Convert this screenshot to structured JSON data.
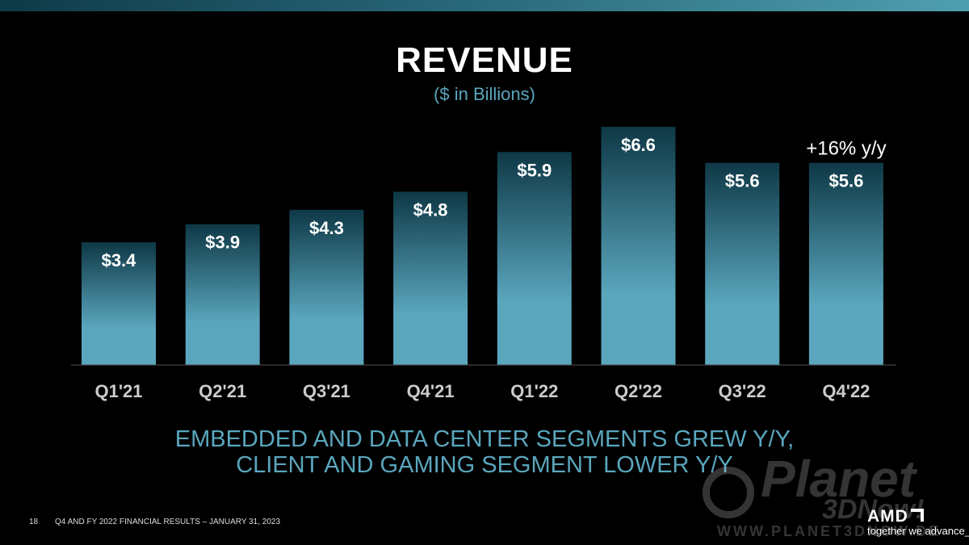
{
  "slide": {
    "title": "REVENUE",
    "subtitle": "($ in Billions)",
    "message_line1": "EMBEDDED AND DATA CENTER SEGMENTS GREW Y/Y,",
    "message_line2": "CLIENT AND GAMING SEGMENT LOWER Y/Y",
    "page_number": "18",
    "footer": "Q4 AND FY 2022 FINANCIAL RESULTS – JANUARY 31, 2023"
  },
  "brand": {
    "logo": "AMD",
    "tagline": "together we advance_",
    "accent_color": "#5aa6bd"
  },
  "watermark": {
    "word": "Planet",
    "word2": "3DNow!",
    "url": "WWW.PLANET3DNOW.DE"
  },
  "chart_data": {
    "type": "bar",
    "title": "REVENUE",
    "subtitle": "($ in Billions)",
    "categories": [
      "Q1'21",
      "Q2'21",
      "Q3'21",
      "Q4'21",
      "Q1'22",
      "Q2'22",
      "Q3'22",
      "Q4'22"
    ],
    "values": [
      3.4,
      3.9,
      4.3,
      4.8,
      5.9,
      6.6,
      5.6,
      5.6
    ],
    "labels": [
      "$3.4",
      "$3.9",
      "$4.3",
      "$4.8",
      "$5.9",
      "$6.6",
      "$5.6",
      "$5.6"
    ],
    "annotation": {
      "category": "Q4'22",
      "text": "+16% y/y"
    },
    "ylim": [
      0,
      6.6
    ],
    "grid": false,
    "bar_color_top": "#0e3846",
    "bar_color_bottom": "#5aa6bd"
  }
}
